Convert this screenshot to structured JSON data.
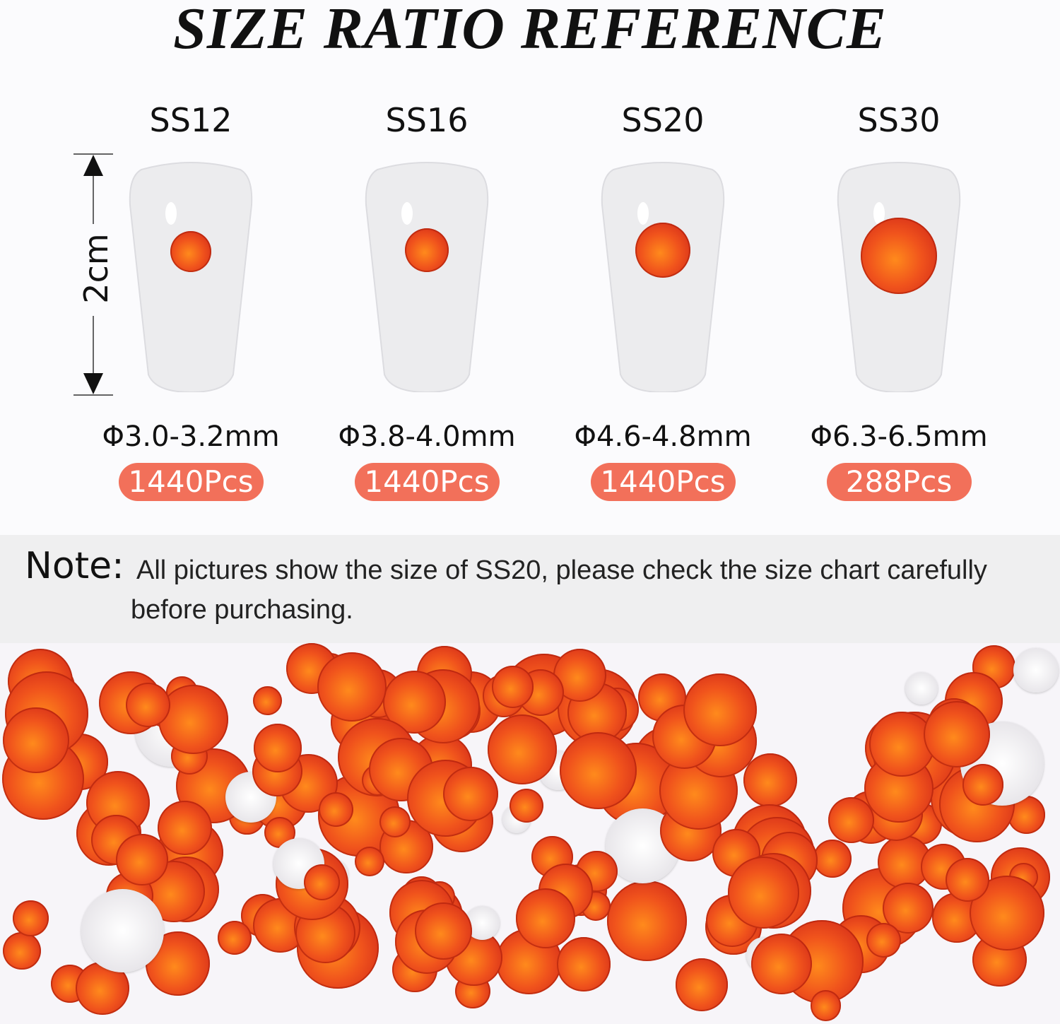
{
  "title": "SIZE RATIO REFERENCE",
  "ruler_label": "2cm",
  "sizes": [
    {
      "label": "SS12",
      "diameter": "Φ3.0-3.2mm",
      "count": "1440Pcs"
    },
    {
      "label": "SS16",
      "diameter": "Φ3.8-4.0mm",
      "count": "1440Pcs"
    },
    {
      "label": "SS20",
      "diameter": "Φ4.6-4.8mm",
      "count": "1440Pcs"
    },
    {
      "label": "SS30",
      "diameter": "Φ6.3-6.5mm",
      "count": "288Pcs"
    }
  ],
  "note": {
    "head": "Note:",
    "line1": "All pictures show the size of SS20, please check the size chart carefully",
    "line2": "before purchasing."
  },
  "colors": {
    "gem": "#f0531c",
    "pill": "#f2705a",
    "note_band": "#efeff0"
  }
}
